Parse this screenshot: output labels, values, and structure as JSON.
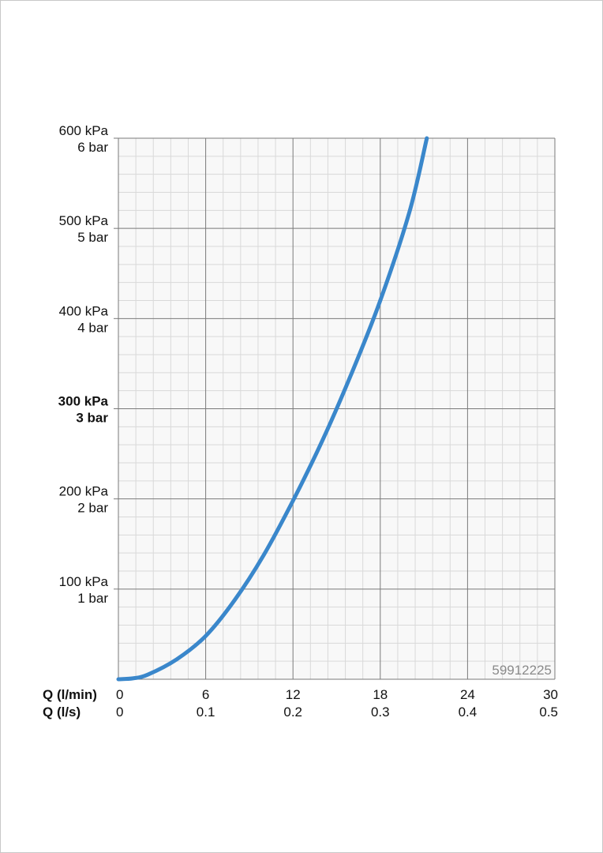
{
  "chart_data": {
    "type": "line",
    "x_axes": [
      {
        "name": "Q (l/min)",
        "ticks": [
          "0",
          "6",
          "12",
          "18",
          "24",
          "30"
        ],
        "range": [
          0,
          30
        ]
      },
      {
        "name": "Q (l/s)",
        "ticks": [
          "0",
          "0.1",
          "0.2",
          "0.3",
          "0.4",
          "0.5"
        ],
        "range": [
          0,
          0.5
        ]
      }
    ],
    "y_axis": {
      "range": [
        0,
        600
      ],
      "unit": "kPa",
      "ticks": [
        {
          "value": 100,
          "kpa": "100 kPa",
          "bar": "1 bar",
          "bold": false
        },
        {
          "value": 200,
          "kpa": "200 kPa",
          "bar": "2 bar",
          "bold": false
        },
        {
          "value": 300,
          "kpa": "300 kPa",
          "bar": "3 bar",
          "bold": true
        },
        {
          "value": 400,
          "kpa": "400 kPa",
          "bar": "4 bar",
          "bold": false
        },
        {
          "value": 500,
          "kpa": "500 kPa",
          "bar": "5 bar",
          "bold": false
        },
        {
          "value": 600,
          "kpa": "600 kPa",
          "bar": "6 bar",
          "bold": false
        }
      ]
    },
    "grid": true,
    "series": [
      {
        "color": "#3a87cb",
        "x": [
          0,
          1,
          2,
          4,
          6,
          8,
          10,
          12,
          14,
          16,
          18,
          20,
          21.2
        ],
        "y": [
          0,
          1,
          5,
          22,
          48,
          88,
          138,
          198,
          264,
          338,
          420,
          518,
          600
        ]
      }
    ],
    "annotations": [
      {
        "text": "59912225",
        "position": "bottom-right"
      }
    ]
  },
  "colors": {
    "major_grid": "#7a7a7a",
    "minor_grid": "#d9d9d9",
    "plot_background": "#f8f8f8",
    "curve": "#3a87cb",
    "code_text": "#8a8a8a"
  }
}
